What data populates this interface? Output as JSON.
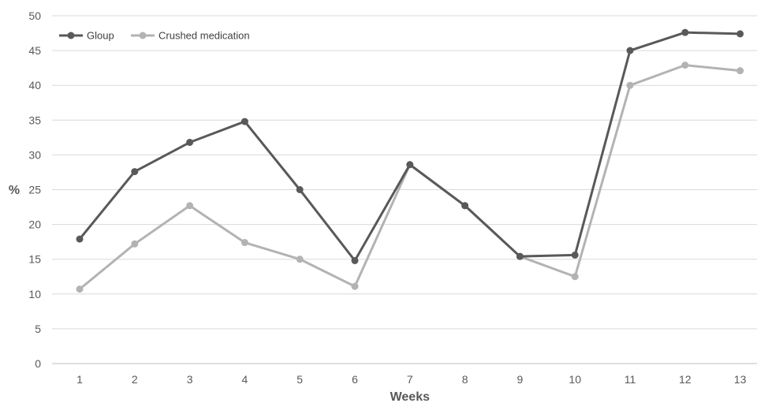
{
  "chart_data": {
    "type": "line",
    "title": "",
    "xlabel": "Weeks",
    "ylabel": "%",
    "x": [
      1,
      2,
      3,
      4,
      5,
      6,
      7,
      8,
      9,
      10,
      11,
      12,
      13
    ],
    "ylim": [
      0,
      50
    ],
    "yticks": [
      0,
      5,
      10,
      15,
      20,
      25,
      30,
      35,
      40,
      45,
      50
    ],
    "grid": true,
    "legend": "top-left",
    "series": [
      {
        "name": "Gloup",
        "color": "#595959",
        "values": [
          17.9,
          27.6,
          31.8,
          34.8,
          25.0,
          14.8,
          28.6,
          22.7,
          15.4,
          15.6,
          45.0,
          47.6,
          47.4
        ]
      },
      {
        "name": "Crushed medication",
        "color": "#b3b3b3",
        "values": [
          10.7,
          17.2,
          22.7,
          17.4,
          15.0,
          11.1,
          28.6,
          22.7,
          15.4,
          12.5,
          40.0,
          42.9,
          42.1
        ]
      }
    ]
  }
}
